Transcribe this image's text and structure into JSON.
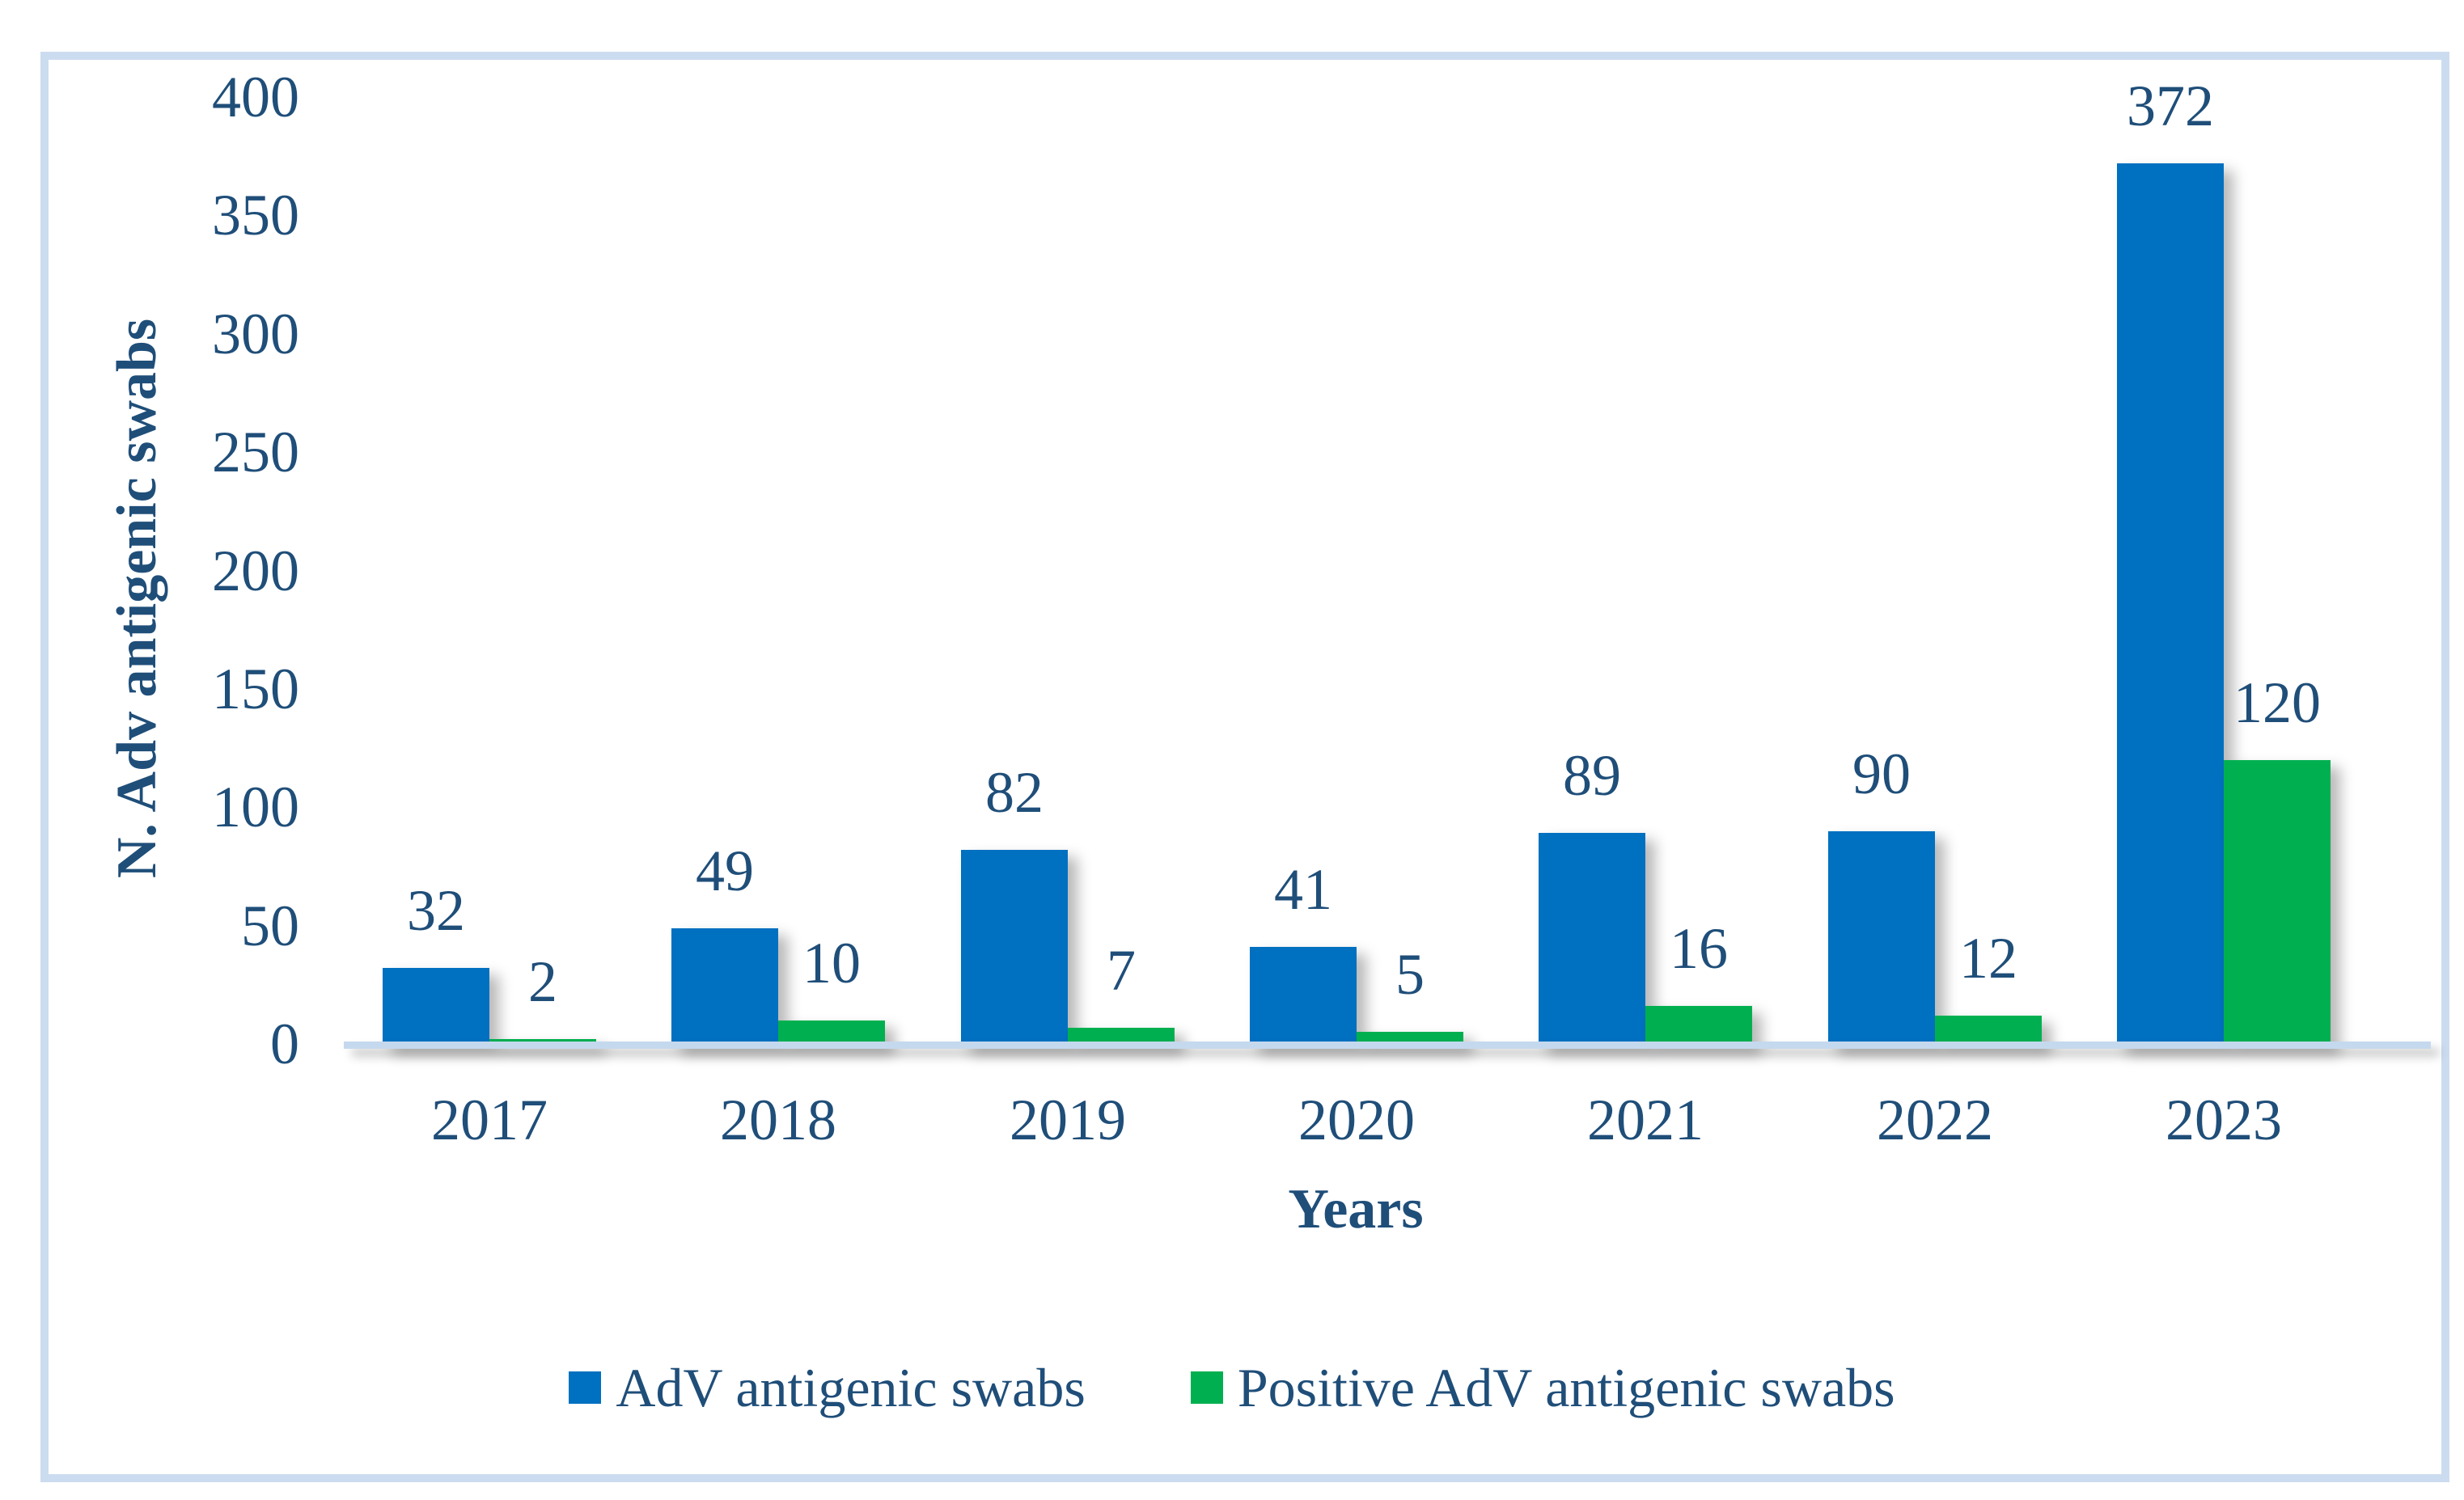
{
  "chart_data": {
    "type": "bar",
    "title": "",
    "categories": [
      "2017",
      "2018",
      "2019",
      "2020",
      "2021",
      "2022",
      "2023"
    ],
    "series": [
      {
        "name": "AdV antigenic swabs",
        "color": "#0070C0",
        "values": [
          32,
          49,
          82,
          41,
          89,
          90,
          372
        ]
      },
      {
        "name": "Positive AdV antigenic swabs",
        "color": "#00B050",
        "values": [
          2,
          10,
          7,
          5,
          16,
          12,
          120
        ]
      }
    ],
    "xlabel": "Years",
    "ylabel": "N. Adv antigenic swabs",
    "y_ticks": [
      0,
      50,
      100,
      150,
      200,
      250,
      300,
      350,
      400
    ],
    "ylim": [
      0,
      400
    ],
    "grid": false,
    "legend_position": "bottom",
    "data_labels": true
  },
  "colors": {
    "text_navy": "#1F4E79",
    "frame_blue": "#CCDCF0",
    "axis_line_blue": "#C5D9EE",
    "background": "#FFFFFF"
  }
}
